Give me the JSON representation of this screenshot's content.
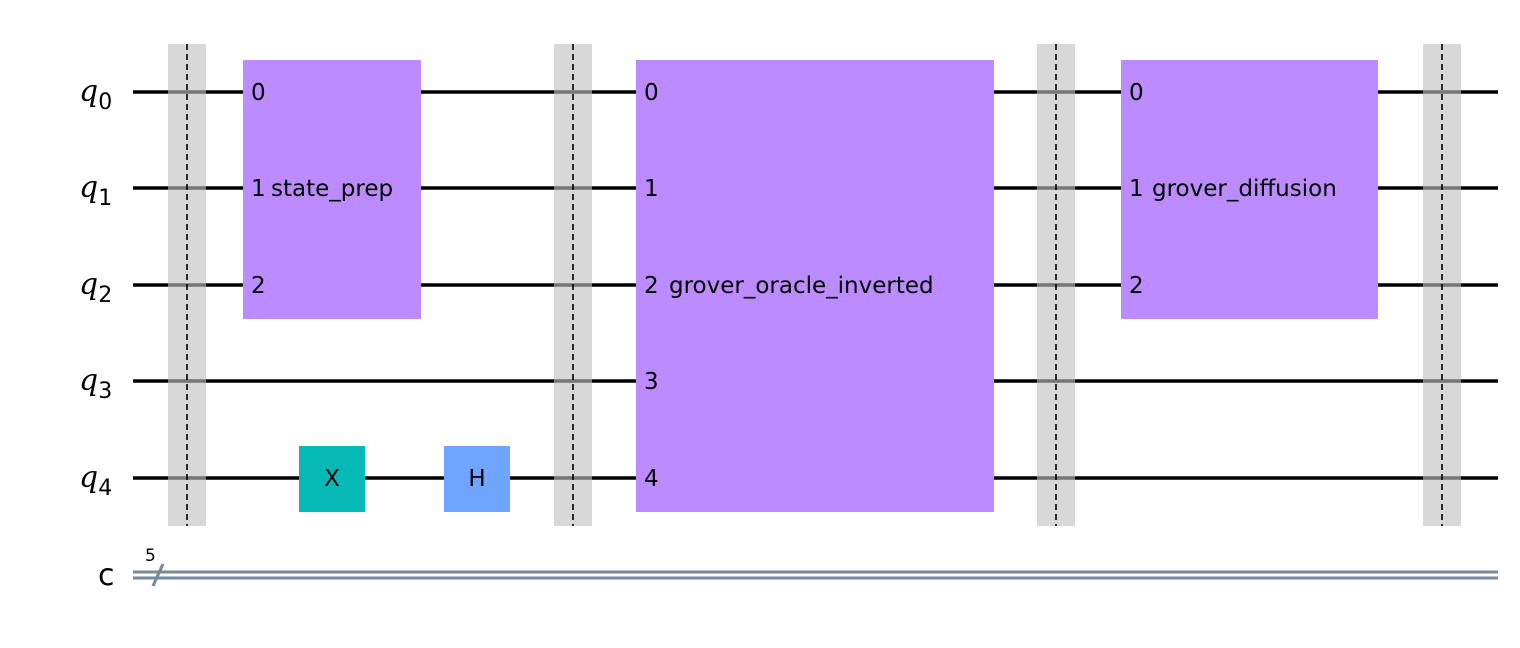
{
  "colors": {
    "custom_gate": "#bb8bff",
    "x_gate": "#05bab6",
    "h_gate": "#6fa4ff",
    "barrier": "#d8d8d8",
    "classical_wire": "#778899"
  },
  "qubits": [
    {
      "base": "q",
      "index": "0"
    },
    {
      "base": "q",
      "index": "1"
    },
    {
      "base": "q",
      "index": "2"
    },
    {
      "base": "q",
      "index": "3"
    },
    {
      "base": "q",
      "index": "4"
    }
  ],
  "classical_register": {
    "name": "c",
    "size": "5"
  },
  "gates": {
    "state_prep": {
      "label": "state_prep",
      "ports": [
        "0",
        "1",
        "2"
      ]
    },
    "x": {
      "label": "X"
    },
    "h": {
      "label": "H"
    },
    "oracle": {
      "label": "grover_oracle_inverted",
      "ports": [
        "0",
        "1",
        "2",
        "3",
        "4"
      ]
    },
    "diffusion": {
      "label": "grover_diffusion",
      "ports": [
        "0",
        "1",
        "2"
      ]
    }
  }
}
